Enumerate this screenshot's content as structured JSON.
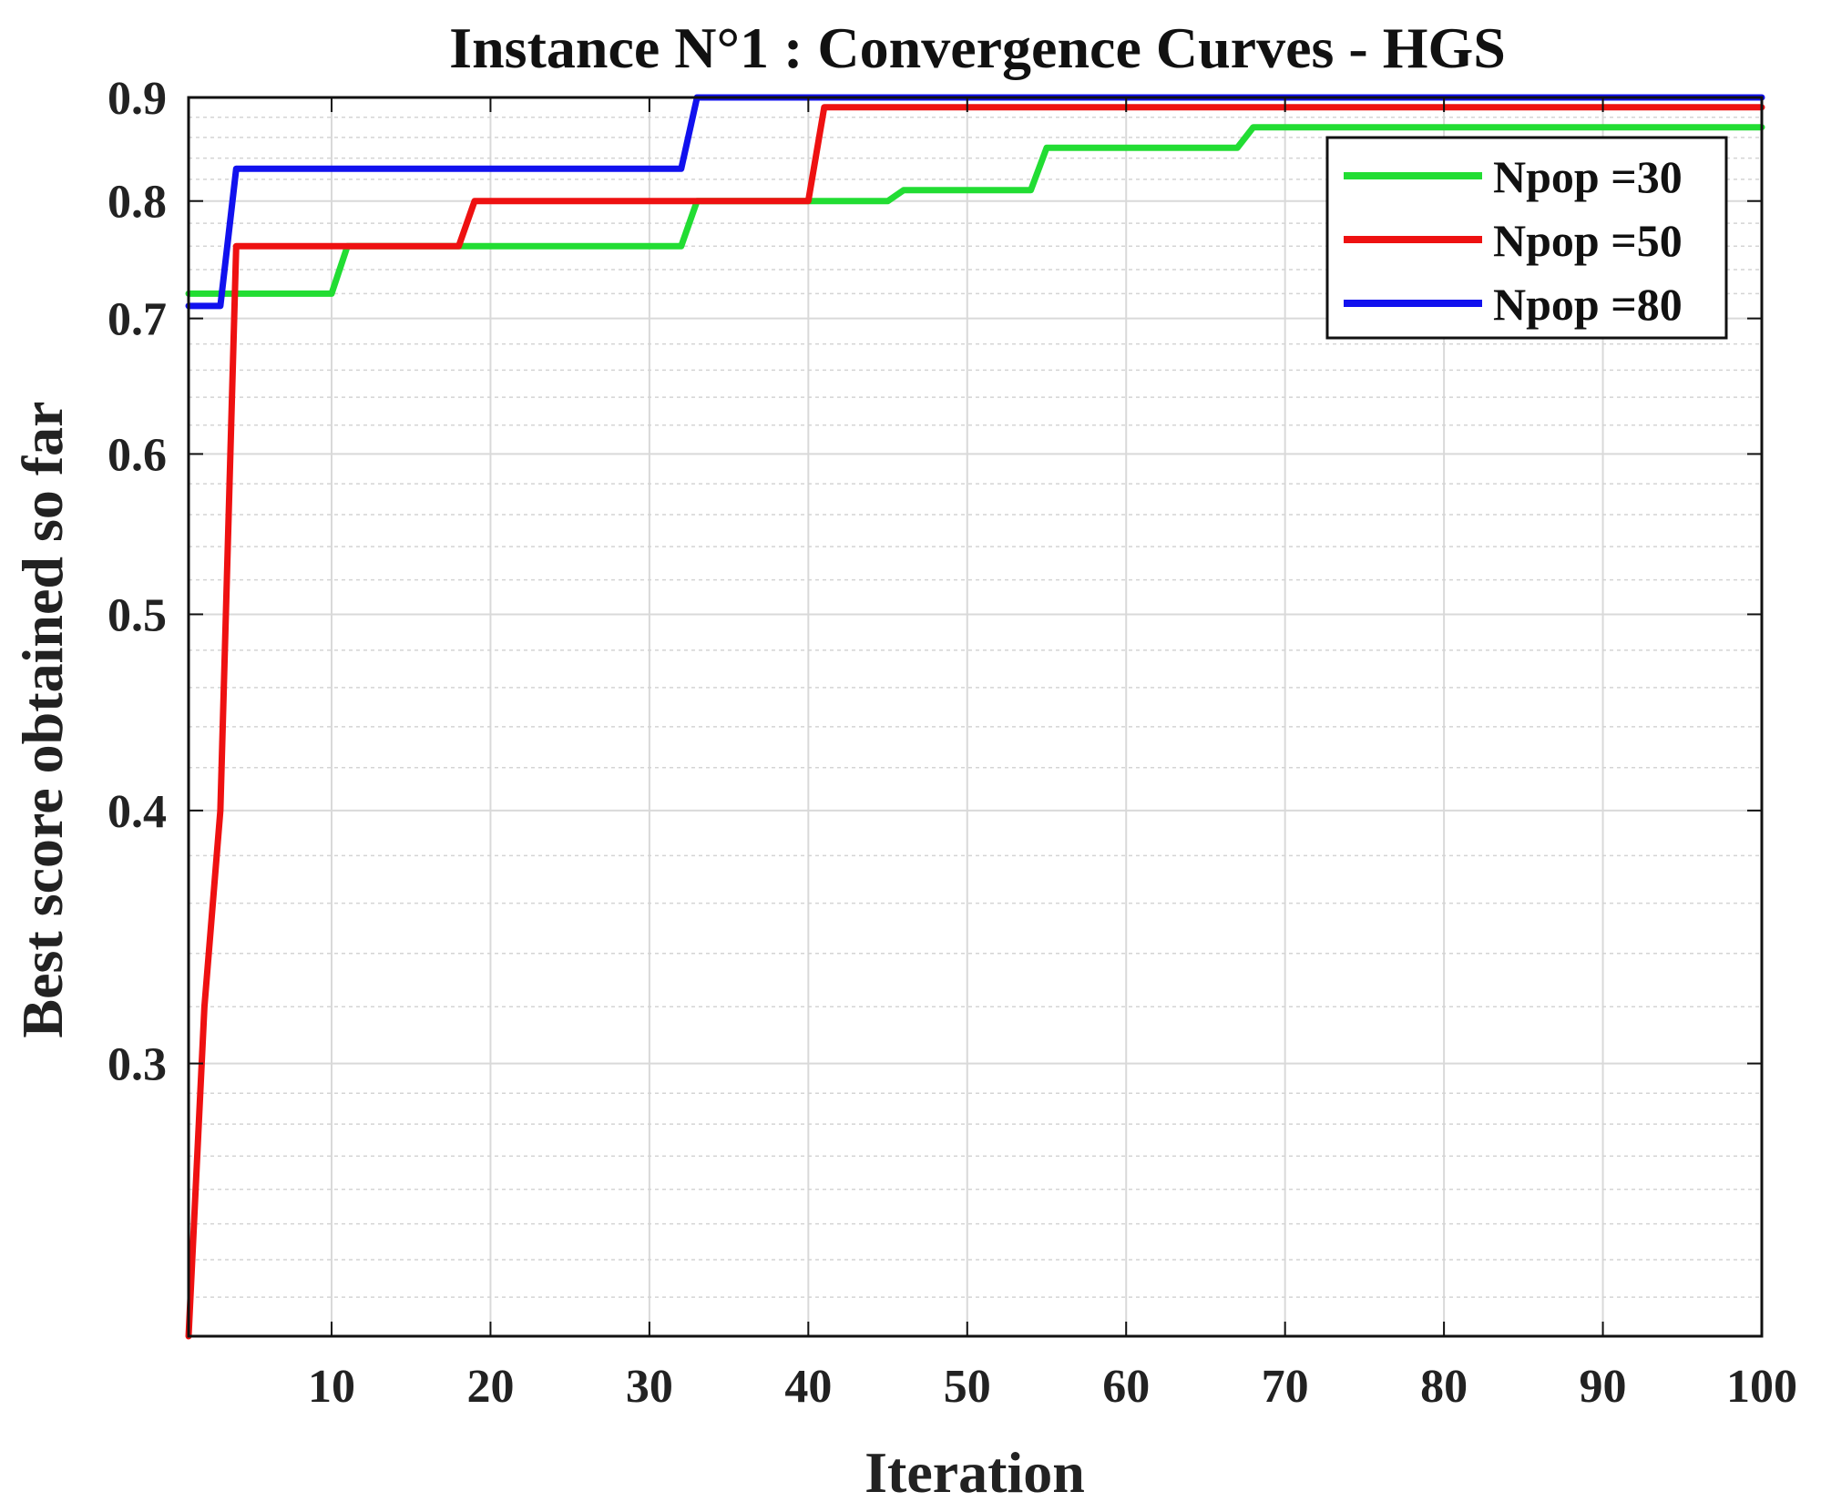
{
  "chart_data": {
    "type": "line",
    "title": "Instance N°1 : Convergence Curves - HGS",
    "xlabel": "Iteration",
    "ylabel": "Best score obtained so far",
    "xlim": [
      1,
      100
    ],
    "ylim": [
      0.22,
      0.9
    ],
    "yscale": "log",
    "grid": true,
    "legend_position": "top-right",
    "x_ticks": [
      10,
      20,
      30,
      40,
      50,
      60,
      70,
      80,
      90,
      100
    ],
    "y_ticks": [
      0.3,
      0.4,
      0.5,
      0.6,
      0.7,
      0.8,
      0.9
    ],
    "series": [
      {
        "name": "Npop =30",
        "color": "#22dd33",
        "points": [
          [
            1,
            0.72
          ],
          [
            10,
            0.72
          ],
          [
            11,
            0.76
          ],
          [
            32,
            0.76
          ],
          [
            33,
            0.8
          ],
          [
            45,
            0.8
          ],
          [
            46,
            0.81
          ],
          [
            54,
            0.81
          ],
          [
            55,
            0.85
          ],
          [
            67,
            0.85
          ],
          [
            68,
            0.87
          ],
          [
            100,
            0.87
          ]
        ]
      },
      {
        "name": "Npop =50",
        "color": "#ee1111",
        "points": [
          [
            1,
            0.22
          ],
          [
            2,
            0.32
          ],
          [
            3,
            0.4
          ],
          [
            4,
            0.76
          ],
          [
            18,
            0.76
          ],
          [
            19,
            0.8
          ],
          [
            40,
            0.8
          ],
          [
            41,
            0.89
          ],
          [
            100,
            0.89
          ]
        ]
      },
      {
        "name": "Npop =80",
        "color": "#1111ee",
        "points": [
          [
            1,
            0.71
          ],
          [
            3,
            0.71
          ],
          [
            4,
            0.83
          ],
          [
            32,
            0.83
          ],
          [
            33,
            0.9
          ],
          [
            100,
            0.9
          ]
        ]
      }
    ]
  }
}
